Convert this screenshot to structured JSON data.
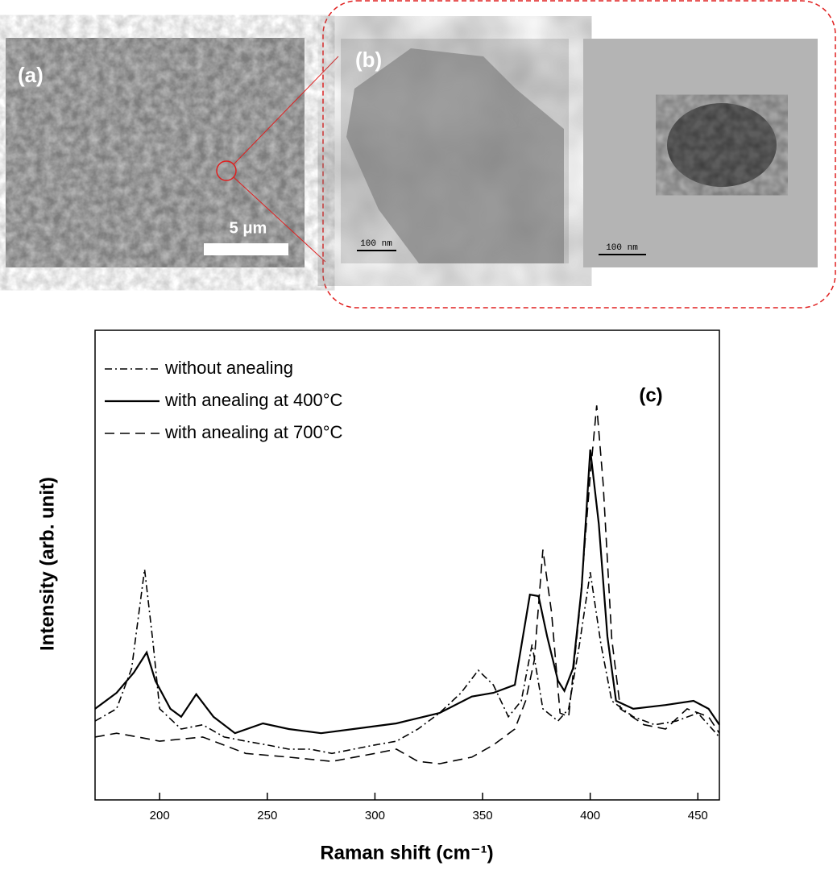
{
  "panel_a": {
    "label": "(a)",
    "scale_bar": "5 μm"
  },
  "panel_b": {
    "label": "(b)",
    "scale_bars": [
      "100 nm",
      "100 nm"
    ]
  },
  "chart_data": {
    "type": "line",
    "label": "(c)",
    "xlabel": "Raman shift (cm⁻¹)",
    "ylabel": "Intensity (arb. unit)",
    "xlim": [
      170,
      460
    ],
    "xticks": [
      200,
      250,
      300,
      350,
      400,
      450
    ],
    "ylim": [
      0,
      100
    ],
    "legend": "upper left",
    "series": [
      {
        "name": "without anealing",
        "color": "#000000",
        "style": "dashdot",
        "x": [
          170,
          180,
          187,
          193,
          197,
          200,
          210,
          220,
          230,
          240,
          250,
          260,
          270,
          280,
          290,
          300,
          310,
          320,
          330,
          340,
          348,
          355,
          362,
          368,
          373,
          378,
          385,
          390,
          395,
          400,
          405,
          410,
          420,
          430,
          440,
          450,
          460
        ],
        "values": [
          16.8,
          19.4,
          28.0,
          49.1,
          33.1,
          19.4,
          15.1,
          16.0,
          13.4,
          12.5,
          11.7,
          10.8,
          10.8,
          9.9,
          10.8,
          11.7,
          12.5,
          15.1,
          18.5,
          22.8,
          27.6,
          24.5,
          17.7,
          21.1,
          33.1,
          19.4,
          16.8,
          19.4,
          33.1,
          48.5,
          33.1,
          21.1,
          17.7,
          16.0,
          16.8,
          18.5,
          13.4
        ]
      },
      {
        "name": "with anealing at 400°C",
        "color": "#000000",
        "style": "solid",
        "x": [
          170,
          180,
          188,
          194,
          198,
          205,
          210,
          217,
          225,
          235,
          248,
          260,
          275,
          290,
          310,
          330,
          345,
          355,
          365,
          372,
          376,
          380,
          385,
          388,
          392,
          396,
          400,
          404,
          408,
          412,
          420,
          435,
          448,
          455,
          460
        ],
        "values": [
          19.4,
          22.8,
          27.1,
          31.4,
          25.4,
          19.4,
          17.7,
          22.5,
          17.7,
          14.2,
          16.3,
          15.1,
          14.2,
          15.1,
          16.3,
          18.5,
          22.0,
          22.8,
          24.5,
          43.7,
          43.4,
          34.8,
          25.4,
          23.2,
          28.0,
          45.1,
          74.6,
          58.8,
          34.8,
          21.1,
          19.4,
          20.2,
          21.1,
          19.4,
          16.0
        ]
      },
      {
        "name": "with anealing at 700°C",
        "color": "#000000",
        "style": "dashed",
        "x": [
          170,
          180,
          190,
          200,
          220,
          240,
          260,
          280,
          300,
          310,
          320,
          330,
          345,
          355,
          365,
          370,
          374,
          378,
          382,
          386,
          390,
          395,
          400,
          403,
          406,
          410,
          414,
          425,
          435,
          445,
          455,
          460
        ],
        "values": [
          13.4,
          14.2,
          13.4,
          12.5,
          13.4,
          9.9,
          9.1,
          8.2,
          9.9,
          10.8,
          8.2,
          7.7,
          9.1,
          11.7,
          15.1,
          21.1,
          29.7,
          53.3,
          40.0,
          18.5,
          17.7,
          40.0,
          69.1,
          84.0,
          67.4,
          34.3,
          19.4,
          16.0,
          15.1,
          19.4,
          17.7,
          14.2
        ]
      }
    ]
  }
}
